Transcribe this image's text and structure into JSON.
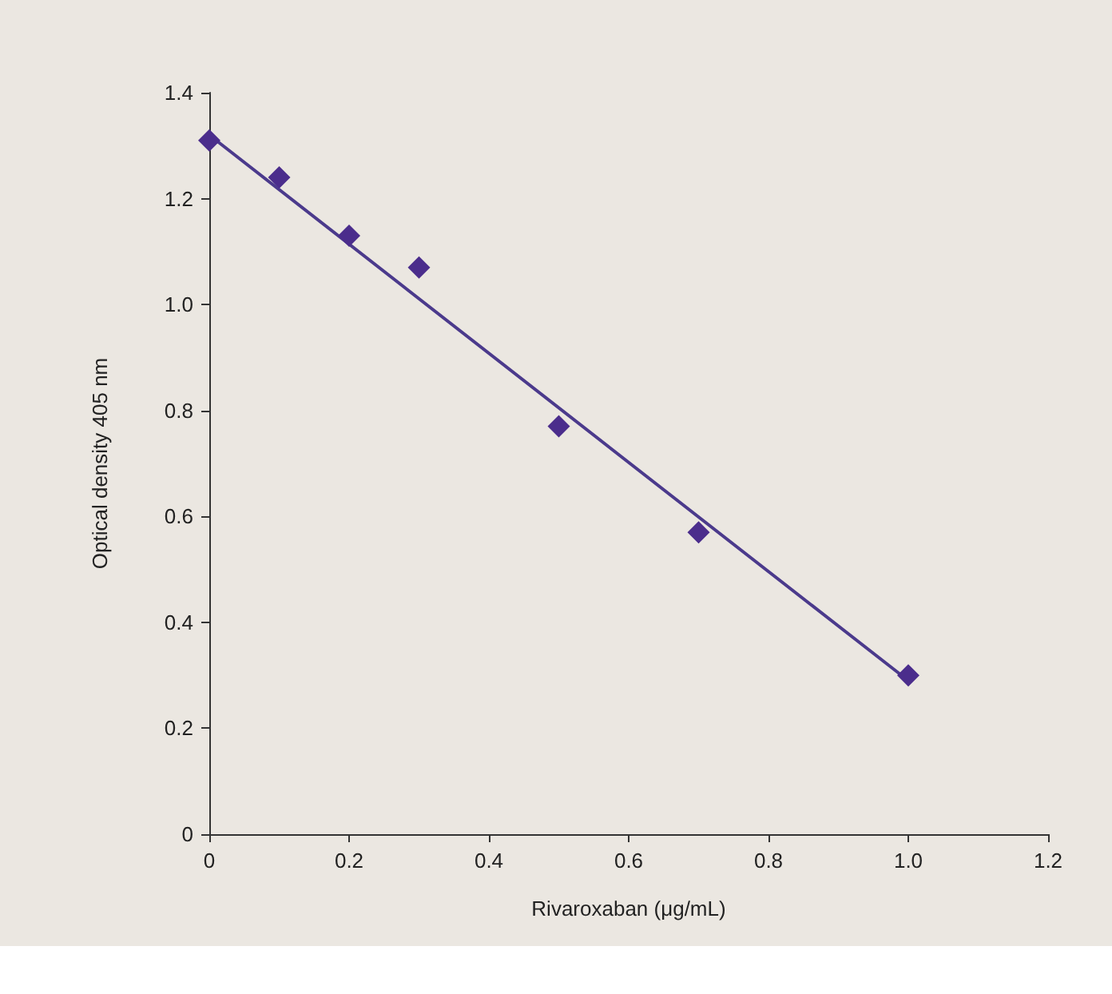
{
  "chart_data": {
    "type": "scatter",
    "xlabel": "Rivaroxaban (μg/mL)",
    "ylabel": "Optical density 405 nm",
    "series": [
      {
        "color": "#4b2d8c",
        "marker": "diamond",
        "x": [
          0,
          0.1,
          0.2,
          0.3,
          0.5,
          0.7,
          1.0
        ],
        "values": [
          1.31,
          1.24,
          1.13,
          1.07,
          0.77,
          0.57,
          0.3
        ]
      },
      {
        "type": "line",
        "color": "#4b3a8c",
        "marker": "none",
        "line_style": "solid",
        "x": [
          0,
          1.0
        ],
        "values": [
          1.32,
          0.29
        ]
      }
    ],
    "xlim": [
      0,
      1.2
    ],
    "xticks": [
      0,
      0.2,
      0.4,
      0.6,
      0.8,
      {
        "value": 1,
        "label": "1.0"
      },
      1.2
    ],
    "ylim": [
      0,
      1.4
    ],
    "yticks": [
      0,
      0.2,
      0.4,
      0.6,
      0.8,
      {
        "value": 1,
        "label": "1.0"
      },
      1.2,
      1.4
    ],
    "grid": false
  }
}
